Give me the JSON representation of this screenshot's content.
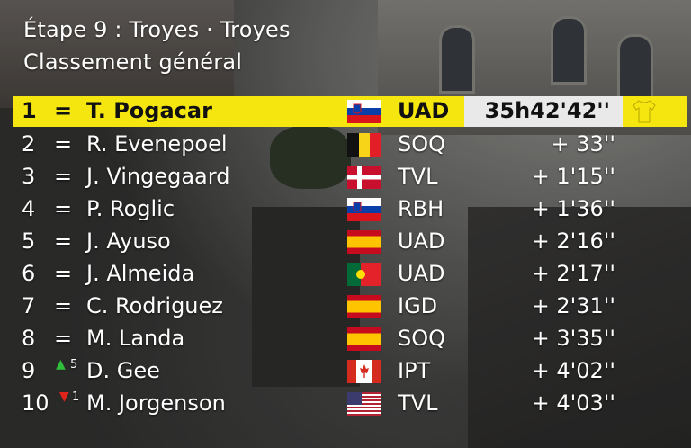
{
  "header": {
    "stage": "Étape 9 : Troyes · Troyes",
    "classification": "Classement général"
  },
  "colors": {
    "leader": "#f5e60f",
    "time_box": "#e9e9e9",
    "up": "#2fbf3a",
    "down": "#e0241b"
  },
  "rows": [
    {
      "pos": "1",
      "change": "=",
      "name": "T. Pogacar",
      "flag": "slovenia-flag-icon",
      "team": "UAD",
      "time": "35h42'42''"
    },
    {
      "pos": "2",
      "change": "=",
      "name": "R. Evenepoel",
      "flag": "belgium-flag-icon",
      "team": "SOQ",
      "time": "+ 33''"
    },
    {
      "pos": "3",
      "change": "=",
      "name": "J. Vingegaard",
      "flag": "denmark-flag-icon",
      "team": "TVL",
      "time": "+ 1'15''"
    },
    {
      "pos": "4",
      "change": "=",
      "name": "P. Roglic",
      "flag": "slovenia-flag-icon",
      "team": "RBH",
      "time": "+ 1'36''"
    },
    {
      "pos": "5",
      "change": "=",
      "name": "J. Ayuso",
      "flag": "spain-flag-icon",
      "team": "UAD",
      "time": "+ 2'16''"
    },
    {
      "pos": "6",
      "change": "=",
      "name": "J. Almeida",
      "flag": "portugal-flag-icon",
      "team": "UAD",
      "time": "+ 2'17''"
    },
    {
      "pos": "7",
      "change": "=",
      "name": "C. Rodriguez",
      "flag": "spain-flag-icon",
      "team": "IGD",
      "time": "+ 2'31''"
    },
    {
      "pos": "8",
      "change": "=",
      "name": "M. Landa",
      "flag": "spain-flag-icon",
      "team": "SOQ",
      "time": "+ 3'35''"
    },
    {
      "pos": "9",
      "change": "up",
      "delta": "5",
      "name": "D. Gee",
      "flag": "canada-flag-icon",
      "team": "IPT",
      "time": "+ 4'02''"
    },
    {
      "pos": "10",
      "change": "down",
      "delta": "1",
      "name": "M. Jorgenson",
      "flag": "usa-flag-icon",
      "team": "TVL",
      "time": "+ 4'03''"
    }
  ]
}
